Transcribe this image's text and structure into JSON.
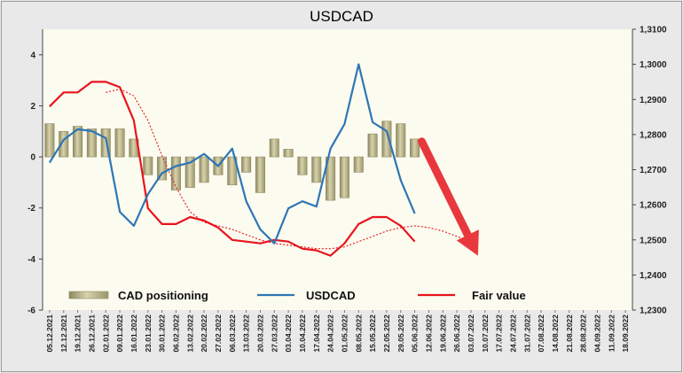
{
  "chart_data": {
    "type": "bar+line",
    "title": "USDCAD",
    "colors": {
      "background": "#e9e9e9",
      "plot_area": "#fbfbef",
      "bars": "#b3ad80",
      "usdcad": "#2e75b6",
      "fair_value": "#e8141d",
      "arrow": "#e8383d"
    },
    "left_axis": {
      "ylim": [
        -6,
        5
      ],
      "ticks": [
        -6,
        -4,
        -2,
        0,
        2,
        4
      ],
      "tick_labels": [
        "-6",
        "-4",
        "-2",
        "0",
        "2",
        "4"
      ]
    },
    "right_axis": {
      "ylim": [
        1.23,
        1.31
      ],
      "ticks": [
        1.23,
        1.24,
        1.25,
        1.26,
        1.27,
        1.28,
        1.29,
        1.3,
        1.31
      ],
      "tick_labels": [
        "1,2300",
        "1,2400",
        "1,2500",
        "1,2600",
        "1,2700",
        "1,2800",
        "1,2900",
        "1,3000",
        "1,3100"
      ]
    },
    "categories": [
      "05.12.2021",
      "12.12.2021",
      "19.12.2021",
      "26.12.2021",
      "02.01.2022",
      "09.01.2022",
      "16.01.2022",
      "23.01.2022",
      "30.01.2022",
      "06.02.2022",
      "13.02.2022",
      "20.02.2022",
      "27.02.2022",
      "06.03.2022",
      "13.03.2022",
      "20.03.2022",
      "27.03.2022",
      "03.04.2022",
      "10.04.2022",
      "17.04.2022",
      "24.04.2022",
      "01.05.2022",
      "08.05.2022",
      "15.05.2022",
      "22.05.2022",
      "29.05.2022",
      "05.06.2022",
      "12.06.2022",
      "19.06.2022",
      "26.06.2022",
      "03.07.2022",
      "10.07.2022",
      "17.07.2022",
      "24.07.2022",
      "31.07.2022",
      "07.08.2022",
      "14.08.2022",
      "21.08.2022",
      "28.08.2022",
      "04.09.2022",
      "11.09.2022",
      "18.09.2022"
    ],
    "series": [
      {
        "name": "CAD positioning",
        "type": "bar",
        "axis": "left",
        "points": [
          [
            0,
            1.3
          ],
          [
            1,
            1.0
          ],
          [
            2,
            1.2
          ],
          [
            3,
            1.1
          ],
          [
            4,
            1.1
          ],
          [
            5,
            1.1
          ],
          [
            6,
            0.7
          ],
          [
            7,
            -0.7
          ],
          [
            8,
            -0.9
          ],
          [
            9,
            -1.3
          ],
          [
            10,
            -1.2
          ],
          [
            11,
            -1.0
          ],
          [
            12,
            -0.7
          ],
          [
            13,
            -1.1
          ],
          [
            14,
            -0.6
          ],
          [
            15,
            -1.4
          ],
          [
            16,
            0.7
          ],
          [
            17,
            0.3
          ],
          [
            18,
            -0.7
          ],
          [
            19,
            -1.0
          ],
          [
            20,
            -1.7
          ],
          [
            21,
            -1.6
          ],
          [
            22,
            -0.6
          ],
          [
            23,
            0.9
          ],
          [
            24,
            1.4
          ],
          [
            25,
            1.3
          ],
          [
            26,
            0.7
          ]
        ]
      },
      {
        "name": "USDCAD",
        "type": "line",
        "axis": "right",
        "points": [
          [
            0,
            1.272
          ],
          [
            1,
            1.2785
          ],
          [
            2,
            1.2815
          ],
          [
            3,
            1.281
          ],
          [
            4,
            1.279
          ],
          [
            5,
            1.258
          ],
          [
            6,
            1.254
          ],
          [
            7,
            1.263
          ],
          [
            8,
            1.269
          ],
          [
            9,
            1.271
          ],
          [
            10,
            1.272
          ],
          [
            11,
            1.2745
          ],
          [
            12,
            1.271
          ],
          [
            13,
            1.276
          ],
          [
            14,
            1.261
          ],
          [
            15,
            1.253
          ],
          [
            16,
            1.249
          ],
          [
            17,
            1.259
          ],
          [
            18,
            1.261
          ],
          [
            19,
            1.2595
          ],
          [
            20,
            1.276
          ],
          [
            21,
            1.283
          ],
          [
            22,
            1.3
          ],
          [
            23,
            1.2835
          ],
          [
            24,
            1.281
          ],
          [
            25,
            1.267
          ],
          [
            26,
            1.2575
          ]
        ]
      },
      {
        "name": "Fair value",
        "type": "line",
        "axis": "right",
        "points": [
          [
            0,
            1.288
          ],
          [
            1,
            1.292
          ],
          [
            2,
            1.292
          ],
          [
            3,
            1.295
          ],
          [
            4,
            1.295
          ],
          [
            5,
            1.2935
          ],
          [
            6,
            1.284
          ],
          [
            7,
            1.259
          ],
          [
            8,
            1.2545
          ],
          [
            9,
            1.2545
          ],
          [
            10,
            1.2565
          ],
          [
            11,
            1.2555
          ],
          [
            12,
            1.2535
          ],
          [
            13,
            1.25
          ],
          [
            14,
            1.2495
          ],
          [
            15,
            1.249
          ],
          [
            16,
            1.25
          ],
          [
            17,
            1.2495
          ],
          [
            18,
            1.2475
          ],
          [
            19,
            1.247
          ],
          [
            20,
            1.2455
          ],
          [
            21,
            1.249
          ],
          [
            22,
            1.2545
          ],
          [
            23,
            1.2565
          ],
          [
            24,
            1.2565
          ],
          [
            25,
            1.254
          ],
          [
            26,
            1.2495
          ]
        ]
      },
      {
        "name": "Fair value trend",
        "type": "line",
        "axis": "right",
        "style": "dotted",
        "points": [
          [
            4,
            1.292
          ],
          [
            5,
            1.293
          ],
          [
            6,
            1.291
          ],
          [
            7,
            1.284
          ],
          [
            8,
            1.274
          ],
          [
            9,
            1.265
          ],
          [
            10,
            1.258
          ],
          [
            11,
            1.255
          ],
          [
            12,
            1.254
          ],
          [
            13,
            1.253
          ],
          [
            14,
            1.2515
          ],
          [
            15,
            1.25
          ],
          [
            16,
            1.249
          ],
          [
            17,
            1.2485
          ],
          [
            18,
            1.248
          ],
          [
            19,
            1.2475
          ],
          [
            20,
            1.2475
          ],
          [
            21,
            1.248
          ],
          [
            22,
            1.2495
          ],
          [
            23,
            1.251
          ],
          [
            24,
            1.2525
          ],
          [
            25,
            1.2535
          ],
          [
            26,
            1.254
          ],
          [
            27,
            1.2535
          ],
          [
            28,
            1.2525
          ],
          [
            29,
            1.251
          ],
          [
            30,
            1.2495
          ]
        ]
      }
    ],
    "arrow": {
      "from": [
        26.5,
        1.278
      ],
      "to": [
        30.5,
        1.2455
      ],
      "meaning": "forecast direction"
    },
    "legend": {
      "position": "bottom",
      "entries": [
        "CAD positioning",
        "USDCAD",
        "Fair value"
      ]
    },
    "grid": false
  }
}
